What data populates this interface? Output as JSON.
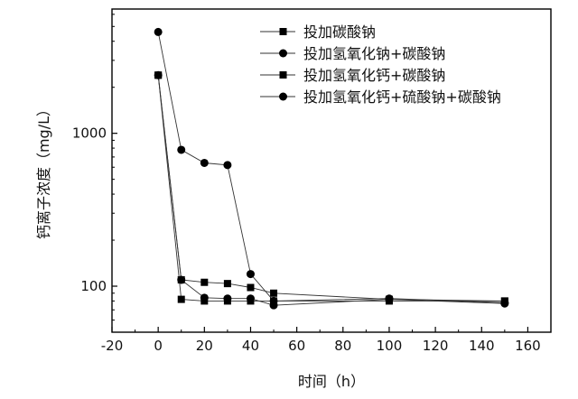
{
  "chart_data": {
    "type": "line",
    "xlabel": "时间（h）",
    "ylabel": "钙离子浓度（mg/L）",
    "xlim": [
      -20,
      170
    ],
    "ylim": [
      50,
      6500
    ],
    "yscale": "log",
    "x_ticks": [
      "-20",
      "0",
      "20",
      "40",
      "60",
      "80",
      "100",
      "120",
      "140",
      "160"
    ],
    "y_ticks": [
      "100",
      "1000"
    ],
    "legend_position": "top-right",
    "series": [
      {
        "name": "投加碳酸钠",
        "marker": "square",
        "color": "#000000",
        "x": [
          0,
          10,
          20,
          30,
          40,
          50,
          100,
          150
        ],
        "y": [
          2400,
          110,
          106,
          104,
          98,
          90,
          82,
          80
        ]
      },
      {
        "name": "投加氢氧化钠+碳酸钠",
        "marker": "circle",
        "color": "#000000",
        "x": [
          0,
          10,
          20,
          30,
          40,
          50,
          100,
          150
        ],
        "y": [
          4600,
          780,
          640,
          620,
          120,
          80,
          83,
          78
        ]
      },
      {
        "name": "投加氢氧化钙+碳酸钠",
        "marker": "square",
        "color": "#000000",
        "x": [
          0,
          10,
          20,
          30,
          40,
          50,
          100,
          150
        ],
        "y": [
          2400,
          82,
          80,
          80,
          80,
          80,
          80,
          80
        ]
      },
      {
        "name": "投加氢氧化钙+硫酸钠+碳酸钠",
        "marker": "circle",
        "color": "#000000",
        "x": [
          0,
          10,
          20,
          30,
          40,
          50,
          100,
          150
        ],
        "y": [
          2400,
          110,
          84,
          83,
          83,
          75,
          82,
          77
        ]
      }
    ]
  }
}
